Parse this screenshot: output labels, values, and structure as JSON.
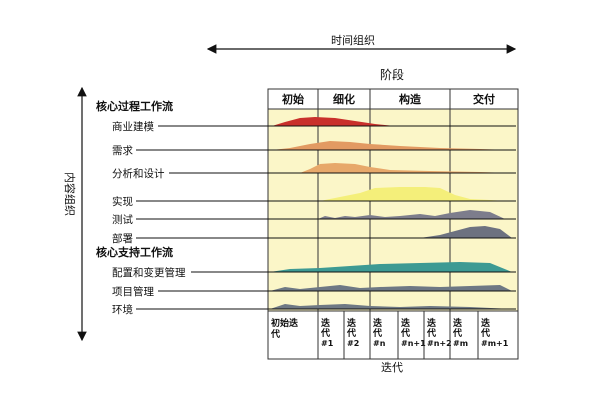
{
  "top_axis": {
    "label": "时间组织"
  },
  "phases_title": "阶段",
  "phases": [
    "初始",
    "细化",
    "构造",
    "交付"
  ],
  "left_axis": {
    "label": "内容组织"
  },
  "core_process_heading": "核心过程工作流",
  "core_workflows": [
    "商业建模",
    "需求",
    "分析和设计",
    "实现",
    "测试",
    "部署"
  ],
  "support_heading": "核心支持工作流",
  "support_workflows": [
    "配置和变更管理",
    "项目管理",
    "环境"
  ],
  "iterations": [
    {
      "label": "初始迭代"
    },
    {
      "label": "迭代\n#1"
    },
    {
      "label": "迭代\n#2"
    },
    {
      "label": "迭代\n#n"
    },
    {
      "label": "迭代\n#n+1"
    },
    {
      "label": "迭代\n#n+2"
    },
    {
      "label": "迭代\n#m"
    },
    {
      "label": "迭代\n#m+1"
    }
  ],
  "iterations_caption": "迭代",
  "colors": {
    "panel": "#fbf6c8",
    "business_modeling": "#c9302b",
    "requirements": "#e29a62",
    "analysis_design": "#e7a86a",
    "implementation": "#f4ef7a",
    "test": "#7d7d8c",
    "deployment": "#6d7280",
    "config_mgmt": "#3d9a93",
    "project_mgmt": "#6e7884",
    "environment": "#6e7884"
  }
}
